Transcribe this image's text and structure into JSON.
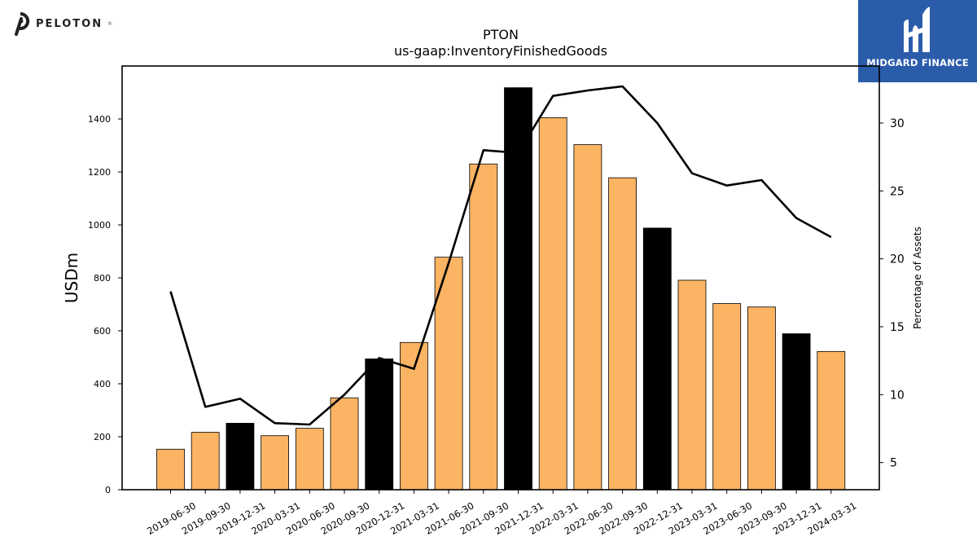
{
  "brand": {
    "name": "PELOTON",
    "registered": "®"
  },
  "watermark": {
    "name": "MIDGARD FINANCE",
    "color": "#2a5caa"
  },
  "chart_data": {
    "type": "bar",
    "title": "PTON",
    "subtitle": "us-gaap:InventoryFinishedGoods",
    "ylabel": "USDm",
    "y2label": "Percentage of Assets",
    "ylim": [
      0,
      1600
    ],
    "yticks": [
      0,
      200,
      400,
      600,
      800,
      1000,
      1200,
      1400
    ],
    "y2lim": [
      3,
      34.2
    ],
    "y2ticks": [
      5,
      10,
      15,
      20,
      25,
      30
    ],
    "grid": false,
    "categories": [
      "2019-06-30",
      "2019-09-30",
      "2019-12-31",
      "2020-03-31",
      "2020-06-30",
      "2020-09-30",
      "2020-12-31",
      "2021-03-31",
      "2021-06-30",
      "2021-09-30",
      "2021-12-31",
      "2022-03-31",
      "2022-06-30",
      "2022-09-30",
      "2022-12-31",
      "2023-03-31",
      "2023-06-30",
      "2023-09-30",
      "2023-12-31",
      "2024-03-31"
    ],
    "series": [
      {
        "type": "bar",
        "values": [
          153,
          217,
          251,
          204,
          232,
          347,
          494,
          556,
          878,
          1230,
          1518,
          1405,
          1303,
          1178,
          988,
          791,
          703,
          690,
          589,
          522
        ],
        "highlight": [
          false,
          false,
          true,
          false,
          false,
          false,
          true,
          false,
          false,
          false,
          true,
          false,
          false,
          false,
          true,
          false,
          false,
          false,
          true,
          false
        ]
      },
      {
        "type": "line",
        "axis": "right",
        "values": [
          17.6,
          9.1,
          9.7,
          7.9,
          7.8,
          10.0,
          12.7,
          11.9,
          19.7,
          28.0,
          27.8,
          32.0,
          32.4,
          32.7,
          30.0,
          26.3,
          25.4,
          25.8,
          23.0,
          21.6
        ]
      }
    ],
    "colors": {
      "bar": "#fbb463",
      "bar_highlight": "#000000",
      "line": "#000000",
      "bar_edge": "#000000"
    }
  }
}
